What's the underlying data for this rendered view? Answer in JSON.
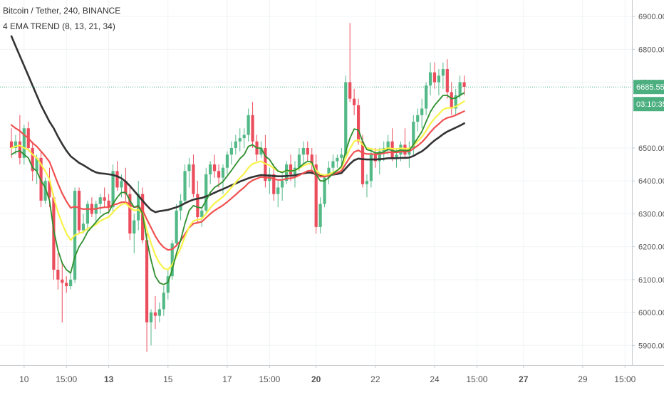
{
  "symbol_title": "Bitcoin / Tether, 240, BINANCE",
  "indicator_title": "4 EMA TREND (8, 13, 21, 34)",
  "colors": {
    "up": "#53b987",
    "down": "#eb4d5c",
    "ema8": "#2f8f2f",
    "ema13": "#f7f34a",
    "ema21": "#f05050",
    "ema34": "#333333",
    "price_line": "#4caf80",
    "grid": "#f0f3f5",
    "axis_text": "#555555"
  },
  "chart_data": {
    "type": "candlestick",
    "title": "Bitcoin / Tether, 240, BINANCE",
    "indicator": "4 EMA TREND (8, 13, 21, 34)",
    "ylim": [
      5840,
      6950
    ],
    "y_ticks": [
      "6900.00",
      "6800.00",
      "6700.00",
      "6500.00",
      "6400.00",
      "6300.00",
      "6200.00",
      "6100.00",
      "6000.00",
      "5900.00"
    ],
    "x_ticks": [
      {
        "label": "10",
        "bold": false,
        "idx": 3
      },
      {
        "label": "15:00",
        "bold": false,
        "idx": 13
      },
      {
        "label": "13",
        "bold": true,
        "idx": 23
      },
      {
        "label": "15",
        "bold": false,
        "idx": 37
      },
      {
        "label": "17",
        "bold": false,
        "idx": 51
      },
      {
        "label": "15:00",
        "bold": false,
        "idx": 61
      },
      {
        "label": "20",
        "bold": true,
        "idx": 72
      },
      {
        "label": "22",
        "bold": false,
        "idx": 86
      },
      {
        "label": "24",
        "bold": false,
        "idx": 100
      },
      {
        "label": "15:00",
        "bold": false,
        "idx": 110
      },
      {
        "label": "27",
        "bold": true,
        "idx": 121
      },
      {
        "label": "29",
        "bold": false,
        "idx": 135
      },
      {
        "label": "15:00",
        "bold": false,
        "idx": 145
      }
    ],
    "last_price": "6685.55",
    "countdown": "03:10:35",
    "candles": [
      [
        6520,
        6560,
        6470,
        6500
      ],
      [
        6500,
        6540,
        6480,
        6520
      ],
      [
        6520,
        6600,
        6450,
        6470
      ],
      [
        6470,
        6570,
        6450,
        6560
      ],
      [
        6560,
        6580,
        6490,
        6500
      ],
      [
        6500,
        6520,
        6400,
        6430
      ],
      [
        6430,
        6480,
        6390,
        6470
      ],
      [
        6470,
        6490,
        6320,
        6340
      ],
      [
        6340,
        6410,
        6330,
        6400
      ],
      [
        6400,
        6440,
        6320,
        6350
      ],
      [
        6350,
        6360,
        6100,
        6130
      ],
      [
        6130,
        6180,
        6070,
        6100
      ],
      [
        6100,
        6150,
        5970,
        6090
      ],
      [
        6090,
        6110,
        6060,
        6080
      ],
      [
        6080,
        6120,
        6070,
        6100
      ],
      [
        6100,
        6380,
        6090,
        6370
      ],
      [
        6370,
        6380,
        6240,
        6250
      ],
      [
        6250,
        6300,
        6240,
        6270
      ],
      [
        6270,
        6340,
        6250,
        6330
      ],
      [
        6330,
        6350,
        6290,
        6300
      ],
      [
        6300,
        6340,
        6270,
        6330
      ],
      [
        6330,
        6360,
        6300,
        6350
      ],
      [
        6350,
        6380,
        6320,
        6340
      ],
      [
        6340,
        6360,
        6300,
        6320
      ],
      [
        6320,
        6450,
        6300,
        6430
      ],
      [
        6430,
        6460,
        6370,
        6380
      ],
      [
        6380,
        6420,
        6350,
        6400
      ],
      [
        6400,
        6440,
        6340,
        6360
      ],
      [
        6360,
        6380,
        6220,
        6240
      ],
      [
        6240,
        6300,
        6180,
        6280
      ],
      [
        6280,
        6400,
        6250,
        6360
      ],
      [
        6360,
        6380,
        6210,
        6220
      ],
      [
        6220,
        6240,
        5880,
        5970
      ],
      [
        5970,
        6010,
        5900,
        6000
      ],
      [
        6000,
        6050,
        5950,
        5990
      ],
      [
        5990,
        6030,
        5970,
        6010
      ],
      [
        6010,
        6080,
        5990,
        6060
      ],
      [
        6060,
        6130,
        6040,
        6110
      ],
      [
        6110,
        6220,
        6100,
        6210
      ],
      [
        6210,
        6330,
        6200,
        6310
      ],
      [
        6310,
        6360,
        6280,
        6340
      ],
      [
        6340,
        6450,
        6330,
        6430
      ],
      [
        6430,
        6470,
        6380,
        6450
      ],
      [
        6450,
        6480,
        6350,
        6360
      ],
      [
        6360,
        6400,
        6270,
        6290
      ],
      [
        6290,
        6320,
        6260,
        6310
      ],
      [
        6310,
        6440,
        6300,
        6420
      ],
      [
        6420,
        6460,
        6390,
        6450
      ],
      [
        6450,
        6480,
        6410,
        6430
      ],
      [
        6430,
        6450,
        6380,
        6410
      ],
      [
        6410,
        6450,
        6360,
        6440
      ],
      [
        6440,
        6490,
        6420,
        6480
      ],
      [
        6480,
        6520,
        6450,
        6500
      ],
      [
        6500,
        6540,
        6480,
        6520
      ],
      [
        6520,
        6560,
        6490,
        6530
      ],
      [
        6530,
        6560,
        6500,
        6540
      ],
      [
        6540,
        6620,
        6520,
        6600
      ],
      [
        6600,
        6640,
        6500,
        6520
      ],
      [
        6520,
        6540,
        6460,
        6480
      ],
      [
        6480,
        6520,
        6470,
        6500
      ],
      [
        6500,
        6540,
        6380,
        6400
      ],
      [
        6400,
        6440,
        6360,
        6420
      ],
      [
        6420,
        6450,
        6340,
        6360
      ],
      [
        6360,
        6400,
        6320,
        6380
      ],
      [
        6380,
        6420,
        6340,
        6400
      ],
      [
        6400,
        6460,
        6390,
        6450
      ],
      [
        6450,
        6480,
        6400,
        6420
      ],
      [
        6420,
        6460,
        6380,
        6440
      ],
      [
        6440,
        6500,
        6430,
        6480
      ],
      [
        6480,
        6520,
        6450,
        6500
      ],
      [
        6500,
        6520,
        6460,
        6480
      ],
      [
        6480,
        6500,
        6420,
        6450
      ],
      [
        6450,
        6480,
        6240,
        6260
      ],
      [
        6260,
        6350,
        6240,
        6330
      ],
      [
        6330,
        6420,
        6320,
        6410
      ],
      [
        6410,
        6460,
        6390,
        6440
      ],
      [
        6440,
        6480,
        6420,
        6460
      ],
      [
        6460,
        6480,
        6440,
        6470
      ],
      [
        6470,
        6500,
        6440,
        6480
      ],
      [
        6480,
        6720,
        6470,
        6700
      ],
      [
        6700,
        6880,
        6640,
        6650
      ],
      [
        6650,
        6680,
        6600,
        6630
      ],
      [
        6630,
        6650,
        6510,
        6520
      ],
      [
        6520,
        6540,
        6380,
        6390
      ],
      [
        6390,
        6420,
        6350,
        6400
      ],
      [
        6400,
        6500,
        6380,
        6480
      ],
      [
        6480,
        6500,
        6440,
        6460
      ],
      [
        6460,
        6500,
        6420,
        6490
      ],
      [
        6490,
        6520,
        6460,
        6500
      ],
      [
        6500,
        6540,
        6480,
        6520
      ],
      [
        6520,
        6560,
        6460,
        6470
      ],
      [
        6470,
        6500,
        6440,
        6480
      ],
      [
        6480,
        6520,
        6460,
        6510
      ],
      [
        6510,
        6560,
        6470,
        6480
      ],
      [
        6480,
        6520,
        6440,
        6500
      ],
      [
        6500,
        6600,
        6480,
        6580
      ],
      [
        6580,
        6620,
        6550,
        6600
      ],
      [
        6600,
        6650,
        6560,
        6620
      ],
      [
        6620,
        6700,
        6600,
        6690
      ],
      [
        6690,
        6760,
        6660,
        6730
      ],
      [
        6730,
        6760,
        6680,
        6700
      ],
      [
        6700,
        6740,
        6660,
        6720
      ],
      [
        6720,
        6760,
        6680,
        6740
      ],
      [
        6740,
        6770,
        6650,
        6670
      ],
      [
        6670,
        6700,
        6600,
        6620
      ],
      [
        6620,
        6680,
        6600,
        6660
      ],
      [
        6660,
        6720,
        6650,
        6700
      ],
      [
        6700,
        6720,
        6660,
        6686
      ]
    ],
    "ema8": [
      6480,
      6488,
      6492,
      6480,
      6470,
      6440,
      6430,
      6400,
      6380,
      6340,
      6250,
      6190,
      6150,
      6130,
      6120,
      6170,
      6200,
      6220,
      6245,
      6260,
      6275,
      6290,
      6300,
      6305,
      6330,
      6350,
      6365,
      6365,
      6340,
      6320,
      6325,
      6300,
      6220,
      6160,
      6110,
      6090,
      6085,
      6092,
      6130,
      6180,
      6220,
      6270,
      6310,
      6325,
      6320,
      6318,
      6340,
      6365,
      6380,
      6388,
      6398,
      6415,
      6432,
      6450,
      6468,
      6480,
      6505,
      6510,
      6500,
      6500,
      6475,
      6465,
      6445,
      6430,
      6425,
      6432,
      6430,
      6432,
      6440,
      6452,
      6460,
      6457,
      6420,
      6400,
      6400,
      6410,
      6422,
      6432,
      6444,
      6490,
      6530,
      6558,
      6555,
      6520,
      6495,
      6492,
      6485,
      6485,
      6488,
      6496,
      6492,
      6490,
      6494,
      6492,
      6493,
      6510,
      6530,
      6550,
      6580,
      6610,
      6630,
      6645,
      6660,
      6660,
      6650,
      6652,
      6660,
      6668
    ],
    "ema13": [
      6500,
      6505,
      6508,
      6500,
      6495,
      6480,
      6470,
      6450,
      6430,
      6405,
      6350,
      6305,
      6270,
      6240,
      6220,
      6235,
      6240,
      6245,
      6255,
      6260,
      6268,
      6278,
      6285,
      6290,
      6305,
      6318,
      6328,
      6332,
      6320,
      6310,
      6313,
      6300,
      6250,
      6210,
      6175,
      6150,
      6135,
      6130,
      6145,
      6170,
      6195,
      6230,
      6260,
      6278,
      6282,
      6285,
      6300,
      6318,
      6332,
      6342,
      6352,
      6365,
      6380,
      6395,
      6410,
      6422,
      6440,
      6452,
      6456,
      6460,
      6452,
      6448,
      6438,
      6430,
      6427,
      6430,
      6430,
      6432,
      6438,
      6446,
      6452,
      6452,
      6432,
      6420,
      6418,
      6420,
      6426,
      6432,
      6440,
      6470,
      6498,
      6520,
      6525,
      6510,
      6500,
      6498,
      6494,
      6494,
      6496,
      6500,
      6498,
      6497,
      6499,
      6498,
      6498,
      6508,
      6520,
      6534,
      6552,
      6574,
      6590,
      6603,
      6617,
      6622,
      6622,
      6626,
      6634,
      6642
    ],
    "ema21": [
      6570,
      6560,
      6552,
      6540,
      6530,
      6515,
      6505,
      6490,
      6475,
      6458,
      6425,
      6392,
      6362,
      6338,
      6318,
      6322,
      6318,
      6314,
      6315,
      6314,
      6315,
      6318,
      6320,
      6320,
      6327,
      6330,
      6335,
      6336,
      6328,
      6320,
      6322,
      6312,
      6283,
      6258,
      6232,
      6212,
      6198,
      6190,
      6192,
      6204,
      6218,
      6238,
      6258,
      6270,
      6273,
      6276,
      6288,
      6300,
      6310,
      6318,
      6326,
      6336,
      6347,
      6358,
      6370,
      6380,
      6393,
      6402,
      6407,
      6412,
      6410,
      6410,
      6406,
      6403,
      6403,
      6407,
      6408,
      6411,
      6417,
      6424,
      6430,
      6432,
      6420,
      6413,
      6413,
      6416,
      6420,
      6425,
      6431,
      6452,
      6472,
      6488,
      6493,
      6485,
      6482,
      6482,
      6481,
      6482,
      6484,
      6487,
      6487,
      6487,
      6489,
      6489,
      6490,
      6498,
      6507,
      6518,
      6532,
      6548,
      6562,
      6573,
      6585,
      6592,
      6595,
      6600,
      6606,
      6612
    ],
    "ema34": [
      6840,
      6810,
      6780,
      6750,
      6720,
      6690,
      6660,
      6630,
      6605,
      6580,
      6560,
      6535,
      6512,
      6492,
      6475,
      6465,
      6455,
      6448,
      6440,
      6432,
      6426,
      6423,
      6422,
      6420,
      6418,
      6414,
      6408,
      6398,
      6385,
      6370,
      6355,
      6340,
      6325,
      6312,
      6305,
      6308,
      6310,
      6312,
      6316,
      6320,
      6325,
      6332,
      6338,
      6343,
      6346,
      6348,
      6353,
      6358,
      6364,
      6370,
      6375,
      6381,
      6387,
      6392,
      6398,
      6403,
      6408,
      6412,
      6415,
      6418,
      6417,
      6416,
      6415,
      6414,
      6414,
      6415,
      6416,
      6417,
      6420,
      6423,
      6425,
      6425,
      6420,
      6417,
      6416,
      6417,
      6419,
      6421,
      6424,
      6438,
      6452,
      6463,
      6468,
      6466,
      6465,
      6465,
      6465,
      6466,
      6467,
      6469,
      6469,
      6469,
      6470,
      6470,
      6471,
      6476,
      6483,
      6490,
      6500,
      6512,
      6523,
      6532,
      6542,
      6550,
      6556,
      6562,
      6568,
      6575
    ]
  }
}
